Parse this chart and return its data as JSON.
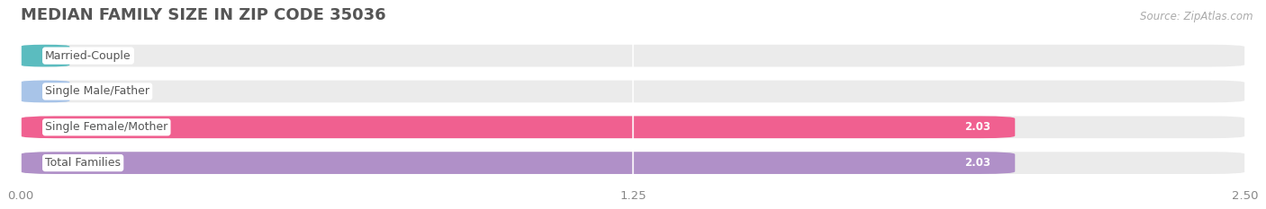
{
  "title": "MEDIAN FAMILY SIZE IN ZIP CODE 35036",
  "source": "Source: ZipAtlas.com",
  "categories": [
    "Married-Couple",
    "Single Male/Father",
    "Single Female/Mother",
    "Total Families"
  ],
  "values": [
    0.0,
    0.0,
    2.03,
    2.03
  ],
  "bar_colors": [
    "#5bbcbf",
    "#a8c4e8",
    "#f06090",
    "#b090c8"
  ],
  "xlim": [
    0,
    2.5
  ],
  "xticks": [
    0.0,
    1.25,
    2.5
  ],
  "xtick_labels": [
    "0.00",
    "1.25",
    "2.50"
  ],
  "bar_height": 0.62,
  "title_fontsize": 13,
  "tick_fontsize": 9.5,
  "label_fontsize": 9,
  "value_fontsize": 8.5,
  "source_fontsize": 8.5,
  "background_color": "#ffffff",
  "bar_bg_color": "#ebebeb",
  "grid_color": "#ffffff",
  "value_color_inside": "#ffffff",
  "value_color_outside": "#888888",
  "label_text_color": "#555555",
  "title_color": "#555555",
  "tick_color": "#888888",
  "source_color": "#aaaaaa"
}
